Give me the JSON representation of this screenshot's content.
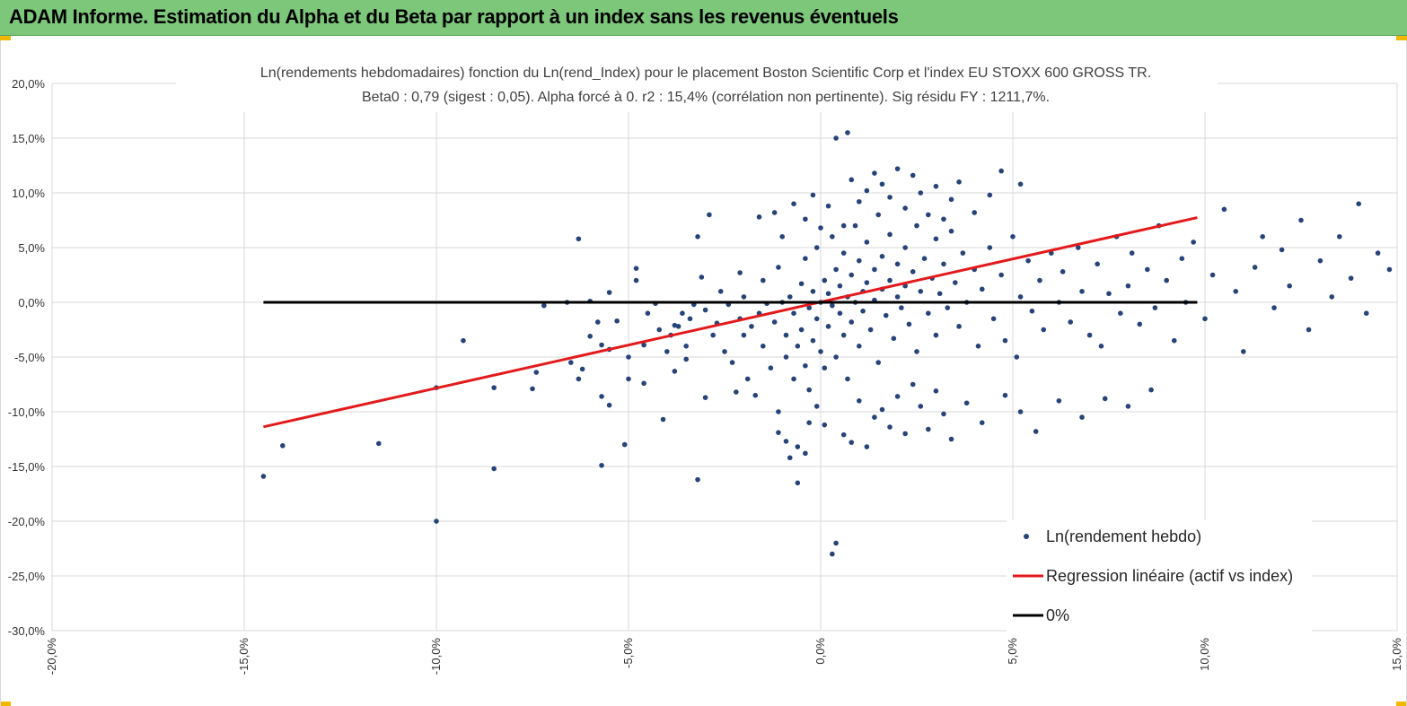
{
  "banner": {
    "title": "ADAM Informe. Estimation du Alpha et du Beta par rapport à un index sans les revenus éventuels"
  },
  "colors": {
    "banner": "#7dc77a",
    "points": "#264478",
    "regression": "#e31a1c",
    "zero_line": "#000000",
    "grid": "#d9d9d9"
  },
  "chart_data": {
    "type": "scatter",
    "title_lines": [
      "Ln(rendements hebdomadaires) fonction du Ln(rend_Index) pour le placement Boston Scientific Corp et l'index EU STOXX 600 GROSS TR.",
      "Beta0 : 0,79 (sigest : 0,05). Alpha forcé à 0. r2 : 15,4% (corrélation non pertinente). Sig résidu FY : 1211,7%."
    ],
    "xlim": [
      -0.2,
      0.15
    ],
    "ylim": [
      -0.3,
      0.2
    ],
    "x_ticks": [
      -0.2,
      -0.15,
      -0.1,
      -0.05,
      0.0,
      0.05,
      0.1,
      0.15
    ],
    "y_ticks": [
      0.2,
      0.15,
      0.1,
      0.05,
      0.0,
      -0.05,
      -0.1,
      -0.15,
      -0.2,
      -0.25,
      -0.3
    ],
    "x_tick_labels": [
      "-20,0%",
      "-15,0%",
      "-10,0%",
      "-5,0%",
      "0,0%",
      "5,0%",
      "10,0%",
      "15,0%"
    ],
    "y_tick_labels": [
      "20,0%",
      "15,0%",
      "10,0%",
      "5,0%",
      "0,0%",
      "-5,0%",
      "-10,0%",
      "-15,0%",
      "-20,0%",
      "-25,0%",
      "-30,0%"
    ],
    "grid": true,
    "legend_position": "bottom-right",
    "series": [
      {
        "name": "Ln(rendement hebdo)",
        "kind": "scatter",
        "points": [
          [
            -0.145,
            -0.159
          ],
          [
            -0.14,
            -0.131
          ],
          [
            -0.115,
            -0.129
          ],
          [
            -0.1,
            -0.2
          ],
          [
            -0.1,
            -0.078
          ],
          [
            -0.093,
            -0.035
          ],
          [
            -0.085,
            -0.152
          ],
          [
            -0.085,
            -0.078
          ],
          [
            -0.075,
            -0.079
          ],
          [
            -0.074,
            -0.064
          ],
          [
            -0.072,
            -0.003
          ],
          [
            -0.066,
            0.0
          ],
          [
            -0.065,
            -0.055
          ],
          [
            -0.063,
            0.058
          ],
          [
            -0.063,
            -0.07
          ],
          [
            -0.062,
            -0.061
          ],
          [
            -0.06,
            0.001
          ],
          [
            -0.06,
            -0.031
          ],
          [
            -0.058,
            -0.018
          ],
          [
            -0.057,
            -0.039
          ],
          [
            -0.057,
            -0.086
          ],
          [
            -0.057,
            -0.149
          ],
          [
            -0.055,
            -0.043
          ],
          [
            -0.055,
            0.009
          ],
          [
            -0.055,
            -0.094
          ],
          [
            -0.053,
            -0.017
          ],
          [
            -0.051,
            -0.13
          ],
          [
            -0.05,
            -0.05
          ],
          [
            -0.05,
            -0.07
          ],
          [
            -0.048,
            0.02
          ],
          [
            -0.048,
            0.031
          ],
          [
            -0.046,
            -0.039
          ],
          [
            -0.046,
            -0.074
          ],
          [
            -0.045,
            -0.01
          ],
          [
            -0.043,
            -0.001
          ],
          [
            -0.042,
            -0.025
          ],
          [
            -0.041,
            -0.107
          ],
          [
            -0.04,
            -0.045
          ],
          [
            -0.039,
            -0.03
          ],
          [
            -0.038,
            -0.063
          ],
          [
            -0.038,
            -0.021
          ],
          [
            -0.037,
            -0.022
          ],
          [
            -0.036,
            -0.01
          ],
          [
            -0.035,
            -0.04
          ],
          [
            -0.035,
            -0.052
          ],
          [
            -0.034,
            -0.015
          ],
          [
            -0.033,
            -0.002
          ],
          [
            -0.032,
            -0.162
          ],
          [
            -0.032,
            0.06
          ],
          [
            -0.031,
            0.023
          ],
          [
            -0.03,
            -0.007
          ],
          [
            -0.03,
            -0.087
          ],
          [
            -0.029,
            0.08
          ],
          [
            -0.028,
            -0.03
          ],
          [
            -0.027,
            -0.019
          ],
          [
            -0.026,
            0.01
          ],
          [
            -0.025,
            -0.045
          ],
          [
            -0.024,
            -0.002
          ],
          [
            -0.023,
            -0.055
          ],
          [
            -0.022,
            -0.082
          ],
          [
            -0.021,
            -0.015
          ],
          [
            -0.021,
            0.027
          ],
          [
            -0.02,
            -0.03
          ],
          [
            -0.02,
            0.005
          ],
          [
            -0.019,
            -0.07
          ],
          [
            -0.018,
            -0.022
          ],
          [
            -0.017,
            -0.085
          ],
          [
            -0.016,
            -0.01
          ],
          [
            -0.015,
            0.02
          ],
          [
            -0.015,
            -0.04
          ],
          [
            -0.014,
            -0.001
          ],
          [
            -0.013,
            -0.06
          ],
          [
            -0.012,
            -0.018
          ],
          [
            -0.011,
            0.032
          ],
          [
            -0.011,
            -0.1
          ],
          [
            -0.01,
            0.0
          ],
          [
            -0.009,
            -0.05
          ],
          [
            -0.009,
            -0.03
          ],
          [
            -0.008,
            0.005
          ],
          [
            -0.007,
            -0.01
          ],
          [
            -0.007,
            -0.07
          ],
          [
            -0.006,
            -0.04
          ],
          [
            -0.006,
            -0.132
          ],
          [
            -0.005,
            0.017
          ],
          [
            -0.005,
            -0.025
          ],
          [
            -0.004,
            0.04
          ],
          [
            -0.004,
            -0.058
          ],
          [
            -0.003,
            -0.005
          ],
          [
            -0.003,
            -0.08
          ],
          [
            -0.002,
            0.01
          ],
          [
            -0.002,
            -0.035
          ],
          [
            -0.001,
            0.05
          ],
          [
            -0.001,
            -0.015
          ],
          [
            0.0,
            -0.045
          ],
          [
            0.0,
            0.0
          ],
          [
            0.001,
            0.02
          ],
          [
            0.001,
            -0.06
          ],
          [
            0.002,
            0.008
          ],
          [
            0.002,
            -0.022
          ],
          [
            0.003,
            0.06
          ],
          [
            0.003,
            -0.003
          ],
          [
            0.004,
            0.03
          ],
          [
            0.004,
            -0.05
          ],
          [
            0.005,
            0.015
          ],
          [
            0.005,
            -0.01
          ],
          [
            0.006,
            0.045
          ],
          [
            0.006,
            -0.03
          ],
          [
            0.007,
            0.005
          ],
          [
            0.007,
            -0.07
          ],
          [
            0.008,
            0.025
          ],
          [
            0.008,
            -0.018
          ],
          [
            0.009,
            0.07
          ],
          [
            0.009,
            0.0
          ],
          [
            0.01,
            0.038
          ],
          [
            0.01,
            -0.04
          ],
          [
            0.011,
            0.01
          ],
          [
            0.011,
            -0.008
          ],
          [
            0.012,
            0.055
          ],
          [
            0.012,
            0.018
          ],
          [
            0.013,
            -0.025
          ],
          [
            0.014,
            0.03
          ],
          [
            0.014,
            0.002
          ],
          [
            0.015,
            0.08
          ],
          [
            0.015,
            -0.055
          ],
          [
            0.016,
            0.042
          ],
          [
            0.016,
            0.012
          ],
          [
            0.017,
            -0.012
          ],
          [
            0.018,
            0.02
          ],
          [
            0.018,
            0.062
          ],
          [
            0.019,
            -0.033
          ],
          [
            0.02,
            0.005
          ],
          [
            0.02,
            0.035
          ],
          [
            0.021,
            -0.005
          ],
          [
            0.022,
            0.05
          ],
          [
            0.022,
            0.015
          ],
          [
            0.023,
            -0.02
          ],
          [
            0.024,
            0.028
          ],
          [
            0.025,
            0.07
          ],
          [
            0.025,
            -0.045
          ],
          [
            0.026,
            0.01
          ],
          [
            0.027,
            0.04
          ],
          [
            0.028,
            -0.01
          ],
          [
            0.029,
            0.022
          ],
          [
            0.03,
            0.058
          ],
          [
            0.03,
            -0.03
          ],
          [
            0.031,
            0.008
          ],
          [
            0.032,
            0.035
          ],
          [
            0.033,
            -0.005
          ],
          [
            0.034,
            0.065
          ],
          [
            0.035,
            0.018
          ],
          [
            0.036,
            -0.022
          ],
          [
            0.037,
            0.045
          ],
          [
            0.038,
            0.0
          ],
          [
            0.04,
            0.03
          ],
          [
            0.041,
            -0.04
          ],
          [
            0.042,
            0.012
          ],
          [
            0.044,
            0.05
          ],
          [
            0.045,
            -0.015
          ],
          [
            0.047,
            0.025
          ],
          [
            0.048,
            -0.035
          ],
          [
            0.05,
            0.06
          ],
          [
            0.051,
            -0.05
          ],
          [
            0.052,
            0.005
          ],
          [
            0.054,
            0.038
          ],
          [
            0.055,
            -0.008
          ],
          [
            0.057,
            0.02
          ],
          [
            0.058,
            -0.025
          ],
          [
            0.06,
            0.045
          ],
          [
            0.062,
            0.0
          ],
          [
            0.063,
            0.028
          ],
          [
            0.065,
            -0.018
          ],
          [
            0.067,
            0.05
          ],
          [
            0.068,
            0.01
          ],
          [
            0.07,
            -0.03
          ],
          [
            0.072,
            0.035
          ],
          [
            0.073,
            -0.04
          ],
          [
            0.075,
            0.008
          ],
          [
            0.077,
            0.06
          ],
          [
            0.078,
            -0.01
          ],
          [
            0.08,
            0.015
          ],
          [
            0.081,
            0.045
          ],
          [
            0.083,
            -0.02
          ],
          [
            0.085,
            0.03
          ],
          [
            0.087,
            -0.005
          ],
          [
            0.088,
            0.07
          ],
          [
            0.09,
            0.02
          ],
          [
            0.092,
            -0.035
          ],
          [
            0.094,
            0.04
          ],
          [
            0.095,
            0.0
          ],
          [
            0.097,
            0.055
          ],
          [
            0.1,
            -0.015
          ],
          [
            0.102,
            0.025
          ],
          [
            0.105,
            0.085
          ],
          [
            0.108,
            0.01
          ],
          [
            0.11,
            -0.045
          ],
          [
            0.113,
            0.032
          ],
          [
            0.115,
            0.06
          ],
          [
            0.118,
            -0.005
          ],
          [
            0.12,
            0.048
          ],
          [
            0.122,
            0.015
          ],
          [
            0.125,
            0.075
          ],
          [
            0.127,
            -0.025
          ],
          [
            0.13,
            0.038
          ],
          [
            0.133,
            0.005
          ],
          [
            0.135,
            0.06
          ],
          [
            0.138,
            0.022
          ],
          [
            0.14,
            0.09
          ],
          [
            0.142,
            -0.01
          ],
          [
            0.145,
            0.045
          ],
          [
            0.148,
            0.03
          ],
          [
            -0.016,
            0.078
          ],
          [
            -0.012,
            0.082
          ],
          [
            -0.01,
            0.06
          ],
          [
            -0.007,
            0.09
          ],
          [
            -0.004,
            0.076
          ],
          [
            -0.002,
            0.098
          ],
          [
            0.0,
            0.068
          ],
          [
            0.002,
            0.088
          ],
          [
            0.004,
            0.15
          ],
          [
            0.006,
            0.07
          ],
          [
            0.007,
            0.155
          ],
          [
            0.008,
            0.112
          ],
          [
            0.01,
            0.092
          ],
          [
            0.012,
            0.102
          ],
          [
            0.014,
            0.118
          ],
          [
            0.016,
            0.108
          ],
          [
            0.018,
            0.096
          ],
          [
            0.02,
            0.122
          ],
          [
            0.022,
            0.086
          ],
          [
            0.024,
            0.116
          ],
          [
            0.026,
            0.1
          ],
          [
            0.028,
            0.08
          ],
          [
            0.03,
            0.106
          ],
          [
            0.032,
            0.076
          ],
          [
            0.034,
            0.094
          ],
          [
            0.036,
            0.11
          ],
          [
            0.04,
            0.082
          ],
          [
            0.044,
            0.098
          ],
          [
            0.047,
            0.12
          ],
          [
            0.052,
            0.108
          ],
          [
            -0.011,
            -0.119
          ],
          [
            -0.009,
            -0.127
          ],
          [
            -0.008,
            -0.142
          ],
          [
            -0.006,
            -0.165
          ],
          [
            -0.004,
            -0.138
          ],
          [
            -0.003,
            -0.11
          ],
          [
            -0.001,
            -0.095
          ],
          [
            0.001,
            -0.112
          ],
          [
            0.003,
            -0.23
          ],
          [
            0.004,
            -0.22
          ],
          [
            0.006,
            -0.121
          ],
          [
            0.008,
            -0.128
          ],
          [
            0.01,
            -0.09
          ],
          [
            0.012,
            -0.132
          ],
          [
            0.014,
            -0.105
          ],
          [
            0.016,
            -0.098
          ],
          [
            0.018,
            -0.114
          ],
          [
            0.02,
            -0.086
          ],
          [
            0.022,
            -0.12
          ],
          [
            0.024,
            -0.075
          ],
          [
            0.026,
            -0.095
          ],
          [
            0.028,
            -0.116
          ],
          [
            0.03,
            -0.081
          ],
          [
            0.032,
            -0.102
          ],
          [
            0.034,
            -0.125
          ],
          [
            0.038,
            -0.092
          ],
          [
            0.042,
            -0.11
          ],
          [
            0.048,
            -0.085
          ],
          [
            0.052,
            -0.1
          ],
          [
            0.056,
            -0.118
          ],
          [
            0.062,
            -0.09
          ],
          [
            0.068,
            -0.105
          ],
          [
            0.074,
            -0.088
          ],
          [
            0.08,
            -0.095
          ],
          [
            0.086,
            -0.08
          ]
        ]
      },
      {
        "name": "Regression linéaire (actif vs index)",
        "kind": "line",
        "x": [
          -0.145,
          0.098
        ],
        "y": [
          -0.1138,
          0.0774
        ]
      },
      {
        "name": "0%",
        "kind": "line",
        "x": [
          -0.145,
          0.098
        ],
        "y": [
          0.0,
          0.0
        ]
      }
    ]
  }
}
